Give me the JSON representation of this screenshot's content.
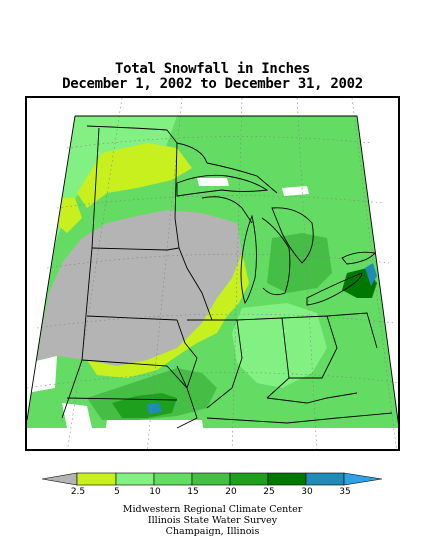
{
  "title": {
    "line1": "Total Snowfall in Inches",
    "line2": "December 1, 2002 to December 31, 2002"
  },
  "legend": {
    "ticks": [
      "2.5",
      "5",
      "10",
      "15",
      "20",
      "25",
      "30",
      "35"
    ],
    "colors": {
      "below": "#b4b4b4",
      "c1": "#c8f01e",
      "c2": "#82f082",
      "c3": "#64dc64",
      "c4": "#46be46",
      "c5": "#1ea01e",
      "c6": "#007800",
      "c7": "#1e8cb4",
      "above": "#32a0e6"
    }
  },
  "credits": {
    "line1": "Midwestern Regional Climate Center",
    "line2": "Illinois State Water Survey",
    "line3": "Champaign, Illinois"
  }
}
